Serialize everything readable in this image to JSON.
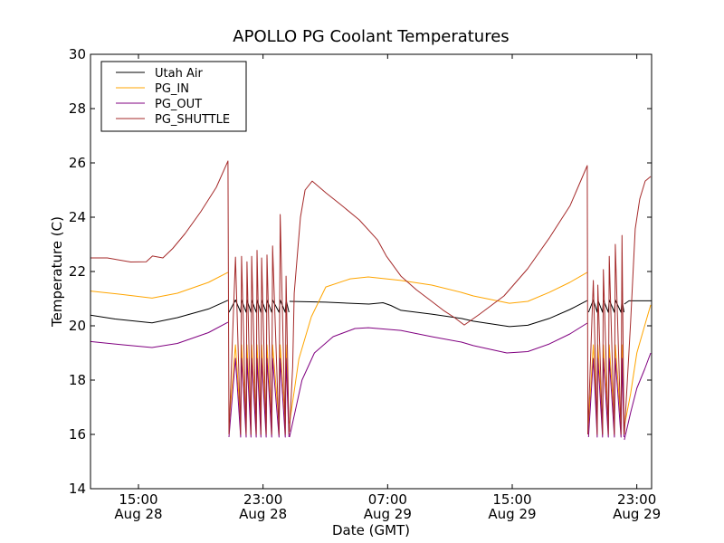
{
  "chart_data": {
    "type": "line",
    "title": "APOLLO PG Coolant Temperatures",
    "xlabel": "Date (GMT)",
    "ylabel": "Temperature (C)",
    "x_units": "hours since 00:00 Aug 28 (GMT)",
    "xlim": [
      11.92,
      47.95
    ],
    "ylim": [
      14,
      30
    ],
    "yticks": [
      14,
      16,
      18,
      20,
      22,
      24,
      26,
      28,
      30
    ],
    "xticks": [
      {
        "value": 15,
        "line1": "15:00",
        "line2": "Aug 28"
      },
      {
        "value": 23,
        "line1": "23:00",
        "line2": "Aug 28"
      },
      {
        "value": 31,
        "line1": "07:00",
        "line2": "Aug 29"
      },
      {
        "value": 39,
        "line1": "15:00",
        "line2": "Aug 29"
      },
      {
        "value": 47,
        "line1": "23:00",
        "line2": "Aug 29"
      }
    ],
    "grid": false,
    "legend_position": "top-left",
    "series": [
      {
        "name": "Utah Air",
        "color": "#000000",
        "segments": [
          {
            "kind": "line",
            "points": [
              [
                11.92,
                20.39
              ],
              [
                13.5,
                20.25
              ],
              [
                15.87,
                20.11
              ],
              [
                17.5,
                20.3
              ],
              [
                19.5,
                20.62
              ],
              [
                20.75,
                20.94
              ]
            ]
          },
          {
            "kind": "osc",
            "start": 20.81,
            "end": 24.7,
            "peaks": [
              21.23,
              21.62,
              21.97,
              22.27,
              22.61,
              22.91,
              23.25,
              23.61,
              24.1,
              24.48
            ],
            "high": 20.95,
            "low": 20.5
          },
          {
            "kind": "line",
            "points": [
              [
                24.7,
                20.9
              ],
              [
                27.03,
                20.87
              ],
              [
                29.8,
                20.8
              ],
              [
                30.7,
                20.85
              ],
              [
                31.2,
                20.75
              ],
              [
                31.85,
                20.57
              ],
              [
                33.83,
                20.43
              ],
              [
                35.74,
                20.27
              ],
              [
                36.5,
                20.17
              ],
              [
                38.82,
                19.97
              ],
              [
                40.0,
                20.02
              ],
              [
                41.38,
                20.27
              ],
              [
                42.7,
                20.6
              ],
              [
                43.82,
                20.93
              ]
            ]
          },
          {
            "kind": "osc",
            "start": 43.9,
            "end": 46.2,
            "peaks": [
              44.21,
              44.5,
              44.85,
              45.23,
              45.62,
              46.05
            ],
            "high": 20.95,
            "low": 20.5
          },
          {
            "kind": "line",
            "points": [
              [
                46.2,
                20.8
              ],
              [
                46.5,
                20.92
              ],
              [
                47.95,
                20.92
              ]
            ]
          }
        ]
      },
      {
        "name": "PG_IN",
        "color": "#ffa500",
        "segments": [
          {
            "kind": "line",
            "points": [
              [
                11.92,
                21.28
              ],
              [
                14.0,
                21.15
              ],
              [
                15.87,
                21.02
              ],
              [
                17.5,
                21.2
              ],
              [
                19.5,
                21.6
              ],
              [
                20.75,
                21.97
              ]
            ]
          },
          {
            "kind": "osc",
            "start": 20.81,
            "end": 24.7,
            "peaks": [
              21.23,
              21.62,
              21.97,
              22.27,
              22.61,
              22.91,
              23.25,
              23.61,
              24.1,
              24.48
            ],
            "high": 19.3,
            "low": 16.4
          },
          {
            "kind": "line",
            "points": [
              [
                24.7,
                16.4
              ],
              [
                25.3,
                18.77
              ],
              [
                26.1,
                20.33
              ],
              [
                27.03,
                21.43
              ],
              [
                28.6,
                21.73
              ],
              [
                29.76,
                21.8
              ],
              [
                31.85,
                21.67
              ],
              [
                33.83,
                21.5
              ],
              [
                35.74,
                21.23
              ],
              [
                36.5,
                21.1
              ],
              [
                38.82,
                20.83
              ],
              [
                40.0,
                20.9
              ],
              [
                41.38,
                21.23
              ],
              [
                42.7,
                21.6
              ],
              [
                43.82,
                21.97
              ]
            ]
          },
          {
            "kind": "osc",
            "start": 43.9,
            "end": 46.2,
            "peaks": [
              44.21,
              44.5,
              44.85,
              45.23,
              45.62,
              46.05
            ],
            "high": 19.3,
            "low": 16.4
          },
          {
            "kind": "line",
            "points": [
              [
                46.2,
                16.3
              ],
              [
                46.6,
                17.5
              ],
              [
                47.0,
                19.0
              ],
              [
                47.5,
                20.0
              ],
              [
                47.89,
                20.77
              ]
            ]
          }
        ]
      },
      {
        "name": "PG_OUT",
        "color": "#800080",
        "segments": [
          {
            "kind": "line",
            "points": [
              [
                11.92,
                19.42
              ],
              [
                14.0,
                19.3
              ],
              [
                15.87,
                19.2
              ],
              [
                17.5,
                19.35
              ],
              [
                19.5,
                19.75
              ],
              [
                20.75,
                20.13
              ]
            ]
          },
          {
            "kind": "osc",
            "start": 20.81,
            "end": 24.7,
            "peaks": [
              21.23,
              21.62,
              21.97,
              22.27,
              22.61,
              22.91,
              23.25,
              23.61,
              24.1,
              24.48
            ],
            "high": 18.8,
            "low": 15.9
          },
          {
            "kind": "line",
            "points": [
              [
                24.7,
                15.9
              ],
              [
                25.5,
                18.0
              ],
              [
                26.3,
                19.0
              ],
              [
                27.5,
                19.6
              ],
              [
                28.9,
                19.9
              ],
              [
                29.76,
                19.93
              ],
              [
                31.85,
                19.83
              ],
              [
                33.83,
                19.6
              ],
              [
                35.74,
                19.4
              ],
              [
                36.5,
                19.27
              ],
              [
                38.65,
                19.0
              ],
              [
                40.0,
                19.05
              ],
              [
                41.38,
                19.33
              ],
              [
                42.7,
                19.7
              ],
              [
                43.82,
                20.1
              ]
            ]
          },
          {
            "kind": "osc",
            "start": 43.9,
            "end": 46.2,
            "peaks": [
              44.21,
              44.5,
              44.85,
              45.23,
              45.62,
              46.05
            ],
            "high": 18.8,
            "low": 15.9
          },
          {
            "kind": "line",
            "points": [
              [
                46.2,
                15.8
              ],
              [
                46.6,
                16.8
              ],
              [
                47.0,
                17.7
              ],
              [
                47.5,
                18.4
              ],
              [
                47.89,
                19.0
              ]
            ]
          }
        ]
      },
      {
        "name": "PG_SHUTTLE",
        "color": "#a52a2a",
        "segments": [
          {
            "kind": "line",
            "points": [
              [
                11.92,
                22.5
              ],
              [
                13.0,
                22.5
              ],
              [
                14.5,
                22.35
              ],
              [
                15.5,
                22.36
              ],
              [
                15.9,
                22.57
              ],
              [
                16.57,
                22.5
              ],
              [
                17.2,
                22.85
              ],
              [
                18.0,
                23.4
              ],
              [
                19.0,
                24.2
              ],
              [
                20.0,
                25.1
              ],
              [
                20.75,
                26.07
              ],
              [
                20.81,
                16.0
              ]
            ]
          },
          {
            "kind": "spikes",
            "start": 20.81,
            "end": 24.7,
            "peaks": [
              [
                21.23,
                22.53
              ],
              [
                21.62,
                22.56
              ],
              [
                21.97,
                22.36
              ],
              [
                22.27,
                22.56
              ],
              [
                22.61,
                22.78
              ],
              [
                22.91,
                22.5
              ],
              [
                23.25,
                22.61
              ],
              [
                23.61,
                22.94
              ],
              [
                24.1,
                24.1
              ],
              [
                24.48,
                21.83
              ]
            ],
            "low": 16.0
          },
          {
            "kind": "line",
            "points": [
              [
                24.7,
                16.1
              ],
              [
                24.9,
                18.5
              ],
              [
                25.0,
                21.2
              ],
              [
                25.4,
                24.0
              ],
              [
                25.7,
                25.0
              ],
              [
                26.16,
                25.33
              ],
              [
                27.03,
                24.9
              ],
              [
                28.02,
                24.45
              ],
              [
                29.18,
                23.9
              ],
              [
                30.34,
                23.17
              ],
              [
                30.92,
                22.57
              ],
              [
                31.85,
                21.83
              ],
              [
                32.84,
                21.33
              ],
              [
                33.83,
                20.9
              ],
              [
                34.58,
                20.57
              ],
              [
                35.3,
                20.3
              ],
              [
                35.92,
                20.03
              ],
              [
                36.91,
                20.43
              ],
              [
                38.47,
                21.1
              ],
              [
                39.99,
                22.1
              ],
              [
                41.38,
                23.23
              ],
              [
                42.72,
                24.43
              ],
              [
                43.82,
                25.9
              ],
              [
                43.86,
                16.0
              ]
            ]
          },
          {
            "kind": "spikes",
            "start": 43.86,
            "end": 46.2,
            "peaks": [
              [
                44.21,
                21.67
              ],
              [
                44.5,
                21.5
              ],
              [
                44.85,
                22.07
              ],
              [
                45.23,
                22.56
              ],
              [
                45.62,
                23.0
              ],
              [
                46.05,
                23.33
              ]
            ],
            "low": 16.0
          },
          {
            "kind": "line",
            "points": [
              [
                46.2,
                16.0
              ],
              [
                46.61,
                20.2
              ],
              [
                46.9,
                23.57
              ],
              [
                47.19,
                24.67
              ],
              [
                47.54,
                25.33
              ],
              [
                47.89,
                25.5
              ]
            ]
          }
        ]
      }
    ]
  }
}
